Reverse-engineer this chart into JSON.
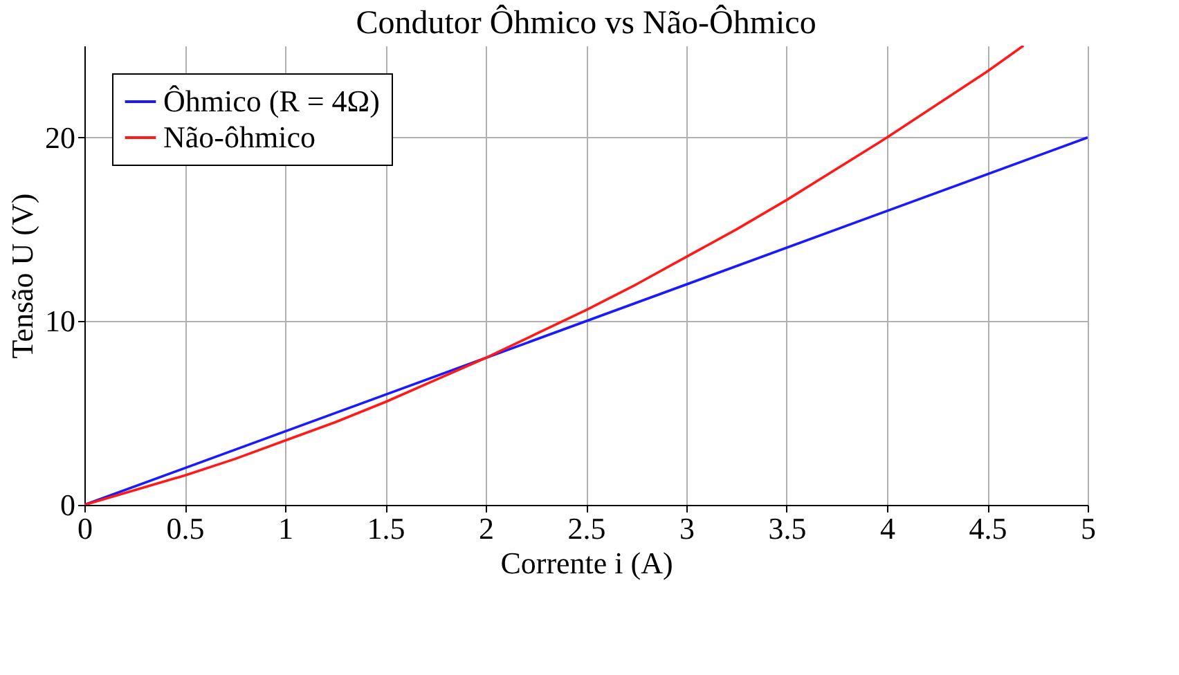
{
  "chart_data": {
    "type": "line",
    "title": "Condutor Ôhmico vs Não-Ôhmico",
    "xlabel": "Corrente i (A)",
    "ylabel": "Tensão U (V)",
    "xlim": [
      0,
      5
    ],
    "ylim": [
      0,
      25
    ],
    "xticks": [
      0,
      0.5,
      1,
      1.5,
      2,
      2.5,
      3,
      3.5,
      4,
      4.5,
      5
    ],
    "yticks": [
      0,
      10,
      20
    ],
    "grid": true,
    "legend": "top left",
    "marker": "none",
    "line_style": "solid",
    "series": [
      {
        "name": "Ôhmico (R = 4Ω)",
        "color": "#1a1aff",
        "x": [
          0,
          5
        ],
        "values": [
          0,
          20
        ]
      },
      {
        "name": "Não-ôhmico",
        "color": "#ff1a1a",
        "x": [
          0,
          0.25,
          0.5,
          0.75,
          1,
          1.25,
          1.5,
          1.75,
          2,
          2.25,
          2.5,
          2.75,
          3,
          3.25,
          3.5,
          3.75,
          4,
          4.25,
          4.5,
          4.68
        ],
        "values": [
          0,
          0.8,
          1.6,
          2.5,
          3.5,
          4.5,
          5.6,
          6.8,
          8,
          9.3,
          10.6,
          12,
          13.5,
          15,
          16.6,
          18.3,
          20,
          21.8,
          23.6,
          25
        ]
      }
    ]
  }
}
